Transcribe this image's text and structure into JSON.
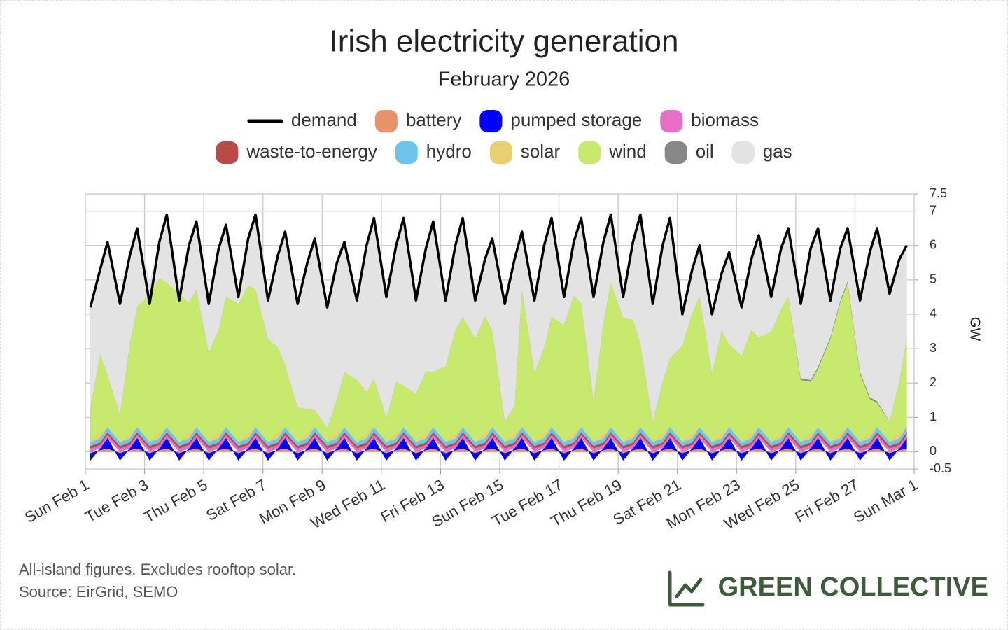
{
  "chart_data": {
    "type": "stacked-area",
    "title": "Irish electricity generation",
    "subtitle": "February 2026",
    "y_label": "GW",
    "xlim": [
      0,
      28
    ],
    "xticks": [
      {
        "value": 0,
        "label": "Sun Feb 1"
      },
      {
        "value": 2,
        "label": "Tue Feb 3"
      },
      {
        "value": 4,
        "label": "Thu Feb 5"
      },
      {
        "value": 6,
        "label": "Sat Feb 7"
      },
      {
        "value": 8,
        "label": "Mon Feb 9"
      },
      {
        "value": 10,
        "label": "Wed Feb 11"
      },
      {
        "value": 12,
        "label": "Fri Feb 13"
      },
      {
        "value": 14,
        "label": "Sun Feb 15"
      },
      {
        "value": 16,
        "label": "Tue Feb 17"
      },
      {
        "value": 18,
        "label": "Thu Feb 19"
      },
      {
        "value": 20,
        "label": "Sat Feb 21"
      },
      {
        "value": 22,
        "label": "Mon Feb 23"
      },
      {
        "value": 24,
        "label": "Wed Feb 25"
      },
      {
        "value": 26,
        "label": "Fri Feb 27"
      },
      {
        "value": 28,
        "label": "Sun Mar 1"
      }
    ],
    "ylim": [
      -0.5,
      7.5
    ],
    "yticks": [
      -0.5,
      0,
      1,
      2,
      3,
      4,
      5,
      6,
      7,
      7.5
    ],
    "grid": true,
    "x": [
      0.17,
      0.5,
      0.75,
      1.17,
      1.5,
      1.75,
      2.17,
      2.5,
      2.75,
      3.17,
      3.5,
      3.75,
      4.17,
      4.5,
      4.75,
      5.17,
      5.5,
      5.75,
      6.17,
      6.5,
      6.75,
      7.17,
      7.5,
      7.75,
      8.17,
      8.5,
      8.75,
      9.17,
      9.5,
      9.75,
      10.17,
      10.5,
      10.75,
      11.17,
      11.5,
      11.75,
      12.17,
      12.5,
      12.75,
      13.17,
      13.5,
      13.75,
      14.17,
      14.5,
      14.75,
      15.17,
      15.5,
      15.75,
      16.17,
      16.5,
      16.75,
      17.17,
      17.5,
      17.75,
      18.17,
      18.5,
      18.75,
      19.17,
      19.5,
      19.75,
      20.17,
      20.5,
      20.75,
      21.17,
      21.5,
      21.75,
      22.17,
      22.5,
      22.75,
      23.17,
      23.5,
      23.75,
      24.17,
      24.5,
      24.75,
      25.17,
      25.5,
      25.75,
      26.17,
      26.5,
      26.75,
      27.17,
      27.5,
      27.75
    ],
    "series": [
      {
        "name": "demand",
        "kind": "line",
        "color": "#000000",
        "values": [
          4.2,
          5.3,
          6.1,
          4.3,
          5.7,
          6.5,
          4.3,
          6.1,
          6.9,
          4.4,
          6.0,
          6.7,
          4.3,
          5.9,
          6.6,
          4.5,
          6.2,
          6.9,
          4.4,
          5.7,
          6.4,
          4.3,
          5.5,
          6.2,
          4.2,
          5.5,
          6.1,
          4.4,
          6.0,
          6.8,
          4.5,
          6.0,
          6.8,
          4.4,
          5.9,
          6.7,
          4.4,
          6.0,
          6.8,
          4.4,
          5.6,
          6.2,
          4.3,
          5.6,
          6.4,
          4.4,
          6.0,
          6.8,
          4.5,
          6.1,
          6.8,
          4.5,
          6.1,
          6.9,
          4.5,
          6.1,
          6.9,
          4.3,
          6.0,
          6.8,
          4.0,
          5.3,
          6.0,
          4.0,
          5.2,
          5.8,
          4.2,
          5.6,
          6.3,
          4.5,
          5.9,
          6.5,
          4.3,
          5.9,
          6.5,
          4.4,
          5.9,
          6.5,
          4.4,
          5.8,
          6.5,
          4.6,
          5.6,
          6.0
        ]
      },
      {
        "name": "battery",
        "kind": "area",
        "color": "#e8926b",
        "values": [
          -0.05,
          0.05,
          0.1,
          -0.05,
          0.05,
          0.1,
          -0.05,
          0.05,
          0.1,
          -0.05,
          0.05,
          0.1,
          -0.05,
          0.05,
          0.1,
          -0.05,
          0.05,
          0.1,
          -0.05,
          0.05,
          0.1,
          -0.05,
          0.05,
          0.1,
          -0.05,
          0.05,
          0.1,
          -0.05,
          0.05,
          0.1,
          -0.05,
          0.05,
          0.1,
          -0.05,
          0.05,
          0.1,
          -0.05,
          0.05,
          0.1,
          -0.05,
          0.05,
          0.1,
          -0.05,
          0.05,
          0.1,
          -0.05,
          0.05,
          0.1,
          -0.05,
          0.05,
          0.1,
          -0.05,
          0.05,
          0.1,
          -0.05,
          0.05,
          0.1,
          -0.05,
          0.05,
          0.1,
          -0.05,
          0.05,
          0.1,
          -0.05,
          0.05,
          0.1,
          -0.05,
          0.05,
          0.1,
          -0.05,
          0.05,
          0.1,
          -0.05,
          0.05,
          0.1,
          -0.05,
          0.05,
          0.1,
          -0.05,
          0.05,
          0.1,
          -0.05,
          0.05,
          0.1
        ]
      },
      {
        "name": "pumped storage",
        "kind": "area",
        "color": "#0000ff",
        "values": [
          -0.2,
          0.05,
          0.3,
          -0.2,
          0.05,
          0.3,
          -0.2,
          0.05,
          0.3,
          -0.2,
          0.05,
          0.3,
          -0.2,
          0.05,
          0.3,
          -0.2,
          0.05,
          0.3,
          -0.2,
          0.05,
          0.3,
          -0.2,
          0.05,
          0.3,
          -0.2,
          0.05,
          0.3,
          -0.2,
          0.05,
          0.3,
          -0.2,
          0.05,
          0.3,
          -0.2,
          0.05,
          0.3,
          -0.2,
          0.05,
          0.3,
          -0.2,
          0.05,
          0.3,
          -0.2,
          0.05,
          0.3,
          -0.2,
          0.05,
          0.3,
          -0.2,
          0.05,
          0.3,
          -0.2,
          0.05,
          0.3,
          -0.2,
          0.05,
          0.3,
          -0.2,
          0.05,
          0.3,
          -0.2,
          0.05,
          0.3,
          -0.2,
          0.05,
          0.3,
          -0.2,
          0.05,
          0.3,
          -0.2,
          0.05,
          0.3,
          -0.2,
          0.05,
          0.3,
          -0.2,
          0.05,
          0.3,
          -0.2,
          0.05,
          0.3,
          -0.2,
          0.05,
          0.3
        ]
      },
      {
        "name": "biomass",
        "kind": "area",
        "color": "#e86fc6",
        "values": [
          0.1,
          0.1,
          0.1,
          0.1,
          0.1,
          0.1,
          0.1,
          0.1,
          0.1,
          0.1,
          0.1,
          0.1,
          0.1,
          0.1,
          0.1,
          0.1,
          0.1,
          0.1,
          0.1,
          0.1,
          0.1,
          0.1,
          0.1,
          0.1,
          0.1,
          0.1,
          0.1,
          0.1,
          0.1,
          0.1,
          0.1,
          0.1,
          0.1,
          0.1,
          0.1,
          0.1,
          0.1,
          0.1,
          0.1,
          0.1,
          0.1,
          0.1,
          0.1,
          0.1,
          0.1,
          0.1,
          0.1,
          0.1,
          0.1,
          0.1,
          0.1,
          0.1,
          0.1,
          0.1,
          0.1,
          0.1,
          0.1,
          0.1,
          0.1,
          0.1,
          0.1,
          0.1,
          0.1,
          0.1,
          0.1,
          0.1,
          0.1,
          0.1,
          0.1,
          0.1,
          0.1,
          0.1,
          0.1,
          0.1,
          0.1,
          0.1,
          0.1,
          0.1,
          0.1,
          0.1,
          0.1,
          0.1,
          0.1,
          0.1
        ]
      },
      {
        "name": "waste-to-energy",
        "kind": "area",
        "color": "#b94a4a",
        "values": [
          0.07,
          0.07,
          0.07,
          0.07,
          0.07,
          0.07,
          0.07,
          0.07,
          0.07,
          0.07,
          0.07,
          0.07,
          0.07,
          0.07,
          0.07,
          0.07,
          0.07,
          0.07,
          0.07,
          0.07,
          0.07,
          0.07,
          0.07,
          0.07,
          0.07,
          0.07,
          0.07,
          0.07,
          0.07,
          0.07,
          0.07,
          0.07,
          0.07,
          0.07,
          0.07,
          0.07,
          0.07,
          0.07,
          0.07,
          0.07,
          0.07,
          0.07,
          0.07,
          0.07,
          0.07,
          0.07,
          0.07,
          0.07,
          0.07,
          0.07,
          0.07,
          0.07,
          0.07,
          0.07,
          0.07,
          0.07,
          0.07,
          0.07,
          0.07,
          0.07,
          0.07,
          0.07,
          0.07,
          0.07,
          0.07,
          0.07,
          0.07,
          0.07,
          0.07,
          0.07,
          0.07,
          0.07,
          0.07,
          0.07,
          0.07,
          0.07,
          0.07,
          0.07,
          0.07,
          0.07,
          0.07,
          0.07,
          0.07,
          0.07
        ]
      },
      {
        "name": "hydro",
        "kind": "area",
        "color": "#6cc5ea",
        "values": [
          0.12,
          0.12,
          0.15,
          0.12,
          0.12,
          0.15,
          0.12,
          0.12,
          0.15,
          0.12,
          0.12,
          0.15,
          0.12,
          0.12,
          0.15,
          0.12,
          0.12,
          0.15,
          0.12,
          0.12,
          0.15,
          0.12,
          0.12,
          0.15,
          0.12,
          0.12,
          0.15,
          0.12,
          0.12,
          0.15,
          0.12,
          0.12,
          0.15,
          0.12,
          0.12,
          0.15,
          0.12,
          0.12,
          0.15,
          0.12,
          0.12,
          0.15,
          0.12,
          0.12,
          0.15,
          0.12,
          0.12,
          0.15,
          0.12,
          0.12,
          0.15,
          0.12,
          0.12,
          0.15,
          0.12,
          0.12,
          0.15,
          0.12,
          0.12,
          0.15,
          0.12,
          0.12,
          0.15,
          0.12,
          0.12,
          0.15,
          0.12,
          0.12,
          0.15,
          0.12,
          0.12,
          0.15,
          0.12,
          0.12,
          0.15,
          0.12,
          0.12,
          0.15,
          0.12,
          0.12,
          0.15,
          0.12,
          0.12,
          0.15
        ]
      },
      {
        "name": "solar",
        "kind": "area",
        "color": "#e8cf72",
        "values": [
          0,
          0.15,
          0,
          0,
          0.15,
          0,
          0,
          0.15,
          0,
          0,
          0.15,
          0,
          0,
          0.15,
          0,
          0,
          0.15,
          0,
          0,
          0.15,
          0,
          0,
          0.15,
          0,
          0,
          0.15,
          0,
          0,
          0.15,
          0,
          0,
          0.15,
          0,
          0,
          0.15,
          0,
          0,
          0.15,
          0,
          0,
          0.15,
          0,
          0,
          0.15,
          0,
          0,
          0.15,
          0,
          0,
          0.15,
          0,
          0,
          0.15,
          0,
          0,
          0.15,
          0,
          0,
          0.15,
          0,
          0,
          0.15,
          0,
          0,
          0.15,
          0,
          0,
          0.15,
          0,
          0,
          0.15,
          0,
          0,
          0.15,
          0,
          0,
          0.15,
          0,
          0,
          0.15,
          0,
          0,
          0.15,
          0
        ]
      },
      {
        "name": "wind",
        "kind": "area",
        "color": "#c6e96e",
        "values": [
          1.0,
          2.3,
          1.5,
          0.8,
          2.6,
          3.5,
          4.3,
          4.5,
          4.2,
          4.3,
          3.8,
          4.0,
          2.6,
          3.0,
          3.8,
          4.0,
          4.3,
          4.0,
          3.0,
          2.5,
          1.8,
          1.0,
          0.7,
          0.5,
          0.4,
          1.0,
          1.6,
          1.8,
          1.2,
          1.4,
          0.7,
          1.5,
          1.2,
          1.4,
          1.8,
          1.6,
          2.2,
          3.0,
          3.2,
          3.0,
          3.4,
          2.8,
          0.6,
          0.8,
          4.0,
          2.0,
          2.5,
          3.2,
          3.4,
          4.0,
          3.6,
          1.2,
          3.2,
          4.2,
          3.6,
          3.3,
          2.4,
          0.6,
          1.5,
          2.0,
          2.8,
          3.5,
          3.8,
          2.0,
          3.0,
          2.4,
          2.5,
          3.0,
          2.6,
          3.2,
          3.6,
          3.8,
          1.8,
          1.5,
          1.7,
          3.0,
          3.8,
          4.2,
          2.0,
          1.0,
          0.7,
          0.6,
          1.5,
          2.6
        ]
      },
      {
        "name": "oil",
        "kind": "area",
        "color": "#888888",
        "values": [
          0,
          0,
          0,
          0,
          0,
          0,
          0,
          0,
          0,
          0,
          0,
          0,
          0,
          0,
          0,
          0,
          0,
          0,
          0,
          0,
          0,
          0,
          0,
          0,
          0,
          0,
          0,
          0,
          0,
          0,
          0,
          0,
          0,
          0,
          0,
          0,
          0,
          0,
          0,
          0,
          0,
          0,
          0,
          0,
          0,
          0,
          0,
          0,
          0,
          0,
          0,
          0,
          0,
          0,
          0,
          0,
          0,
          0,
          0,
          0,
          0,
          0,
          0,
          0,
          0,
          0,
          0,
          0,
          0,
          0,
          0,
          0,
          0.05,
          0.05,
          0.05,
          0.05,
          0.05,
          0.05,
          0.05,
          0.05,
          0.05,
          0,
          0,
          0
        ]
      },
      {
        "name": "gas",
        "kind": "area",
        "color": "#e3e3e3",
        "values": [
          2.9,
          2.5,
          3.9,
          3.2,
          2.6,
          2.3,
          0.3,
          1.1,
          2.0,
          0.3,
          1.7,
          2.0,
          1.4,
          2.4,
          2.1,
          0.3,
          1.4,
          2.2,
          1.1,
          2.7,
          3.9,
          3.0,
          4.3,
          5.0,
          3.5,
          4.0,
          3.8,
          2.3,
          4.3,
          4.7,
          3.5,
          4.0,
          4.9,
          2.7,
          3.6,
          4.4,
          1.9,
          2.5,
          2.9,
          1.1,
          1.7,
          2.7,
          3.4,
          4.3,
          1.7,
          2.1,
          3.0,
          2.9,
          0.8,
          1.6,
          2.5,
          3.0,
          2.4,
          2.0,
          0.6,
          2.3,
          3.8,
          3.4,
          4.0,
          4.1,
          0.9,
          1.3,
          1.5,
          1.7,
          1.7,
          2.7,
          1.4,
          2.1,
          3.0,
          1.0,
          1.8,
          2.0,
          2.2,
          3.9,
          4.1,
          1.1,
          1.6,
          1.6,
          2.1,
          4.3,
          5.1,
          3.7,
          3.6,
          2.7
        ]
      }
    ]
  },
  "footer": {
    "notes": [
      "All-island figures. Excludes rooftop solar.",
      "Source: EirGrid, SEMO"
    ],
    "brand": "GREEN COLLECTIVE"
  }
}
